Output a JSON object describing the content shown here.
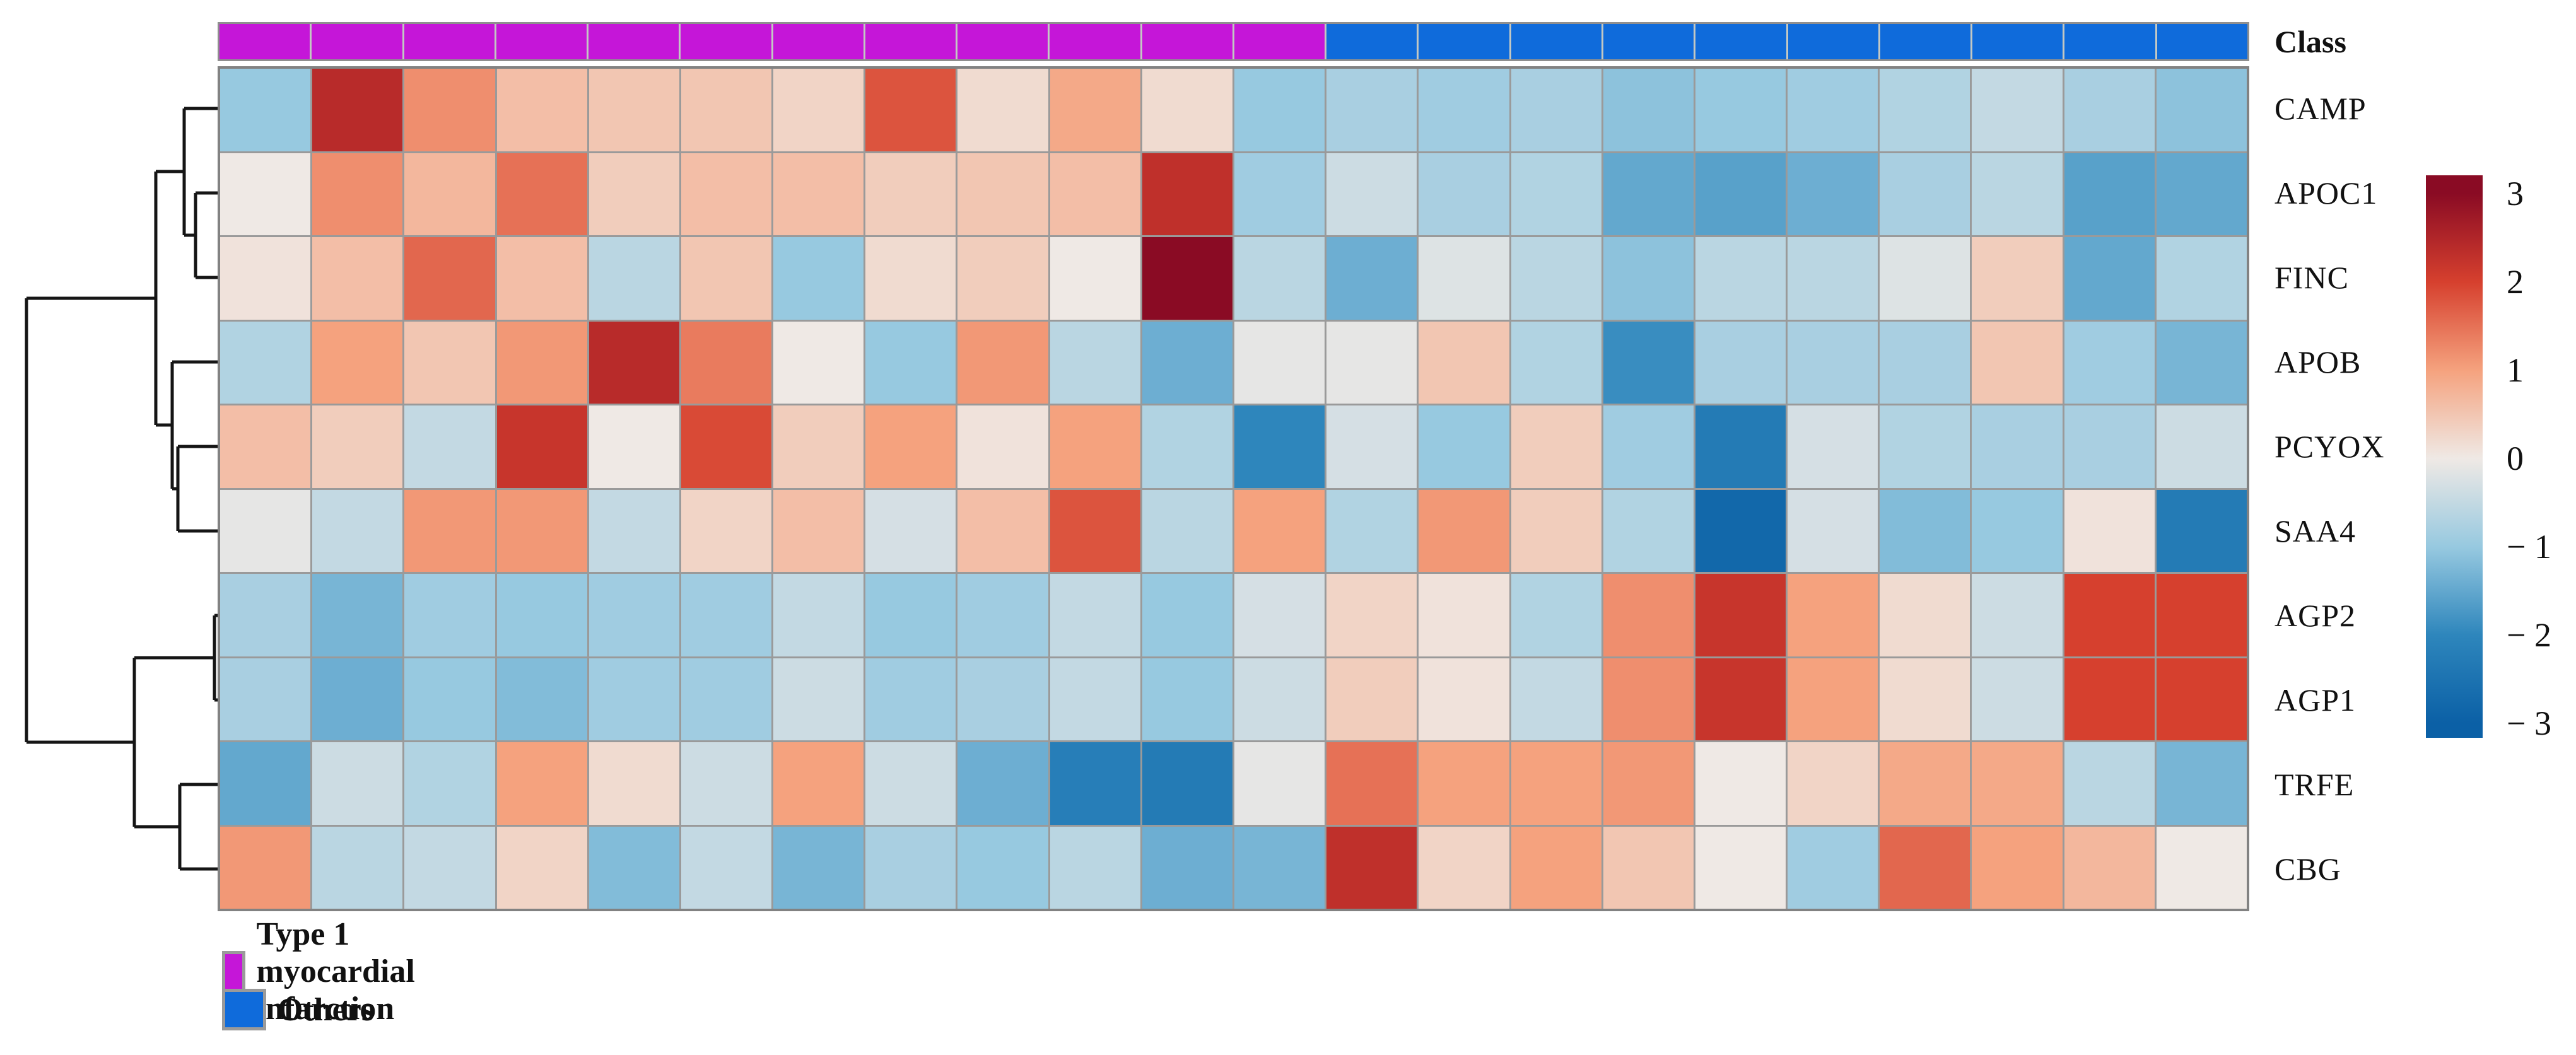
{
  "annotation_bar": {
    "label": "Class",
    "column_classes": [
      "mi",
      "mi",
      "mi",
      "mi",
      "mi",
      "mi",
      "mi",
      "mi",
      "mi",
      "mi",
      "mi",
      "mi",
      "other",
      "other",
      "other",
      "other",
      "other",
      "other",
      "other",
      "other",
      "other",
      "other"
    ],
    "class_colors": {
      "mi": "#c516d8",
      "other": "#0f6bdb"
    }
  },
  "legend": {
    "items": [
      {
        "label": "Type 1 myocardial infarction",
        "color": "#c516d8"
      },
      {
        "label": "Others",
        "color": "#0f6bdb"
      }
    ]
  },
  "chart_data": {
    "type": "heatmap",
    "title": "",
    "rows": [
      "CAMP",
      "APOC1",
      "FINC",
      "APOB",
      "PCYOX",
      "SAA4",
      "AGP2",
      "AGP1",
      "TRFE",
      "CBG"
    ],
    "n_columns": 22,
    "column_group_counts": {
      "Type 1 myocardial infarction": 12,
      "Others": 10
    },
    "values": [
      [
        -1.0,
        2.4,
        1.2,
        0.6,
        0.5,
        0.5,
        0.3,
        1.8,
        0.2,
        0.9,
        0.2,
        -1.0,
        -0.8,
        -0.9,
        -0.8,
        -1.1,
        -1.0,
        -0.9,
        -0.7,
        -0.5,
        -0.8,
        -1.1
      ],
      [
        0.0,
        1.2,
        0.7,
        1.5,
        0.4,
        0.6,
        0.6,
        0.4,
        0.5,
        0.6,
        2.3,
        -0.9,
        -0.4,
        -0.8,
        -0.7,
        -1.5,
        -1.6,
        -1.4,
        -0.8,
        -0.6,
        -1.6,
        -1.5
      ],
      [
        0.1,
        0.6,
        1.6,
        0.6,
        -0.6,
        0.5,
        -1.0,
        0.2,
        0.4,
        0.0,
        3.0,
        -0.6,
        -1.4,
        -0.2,
        -0.6,
        -1.1,
        -0.6,
        -0.6,
        -0.2,
        0.4,
        -1.5,
        -0.7
      ],
      [
        -0.7,
        1.0,
        0.5,
        1.1,
        2.4,
        1.4,
        0.0,
        -1.0,
        1.1,
        -0.6,
        -1.4,
        -0.1,
        -0.1,
        0.5,
        -0.7,
        -1.9,
        -0.8,
        -0.8,
        -0.8,
        0.5,
        -0.9,
        -1.3
      ],
      [
        0.6,
        0.4,
        -0.5,
        2.2,
        0.0,
        1.9,
        0.4,
        1.0,
        0.1,
        1.0,
        -0.7,
        -2.0,
        -0.3,
        -1.0,
        0.4,
        -0.9,
        -2.3,
        -0.3,
        -0.7,
        -0.8,
        -0.8,
        -0.4
      ],
      [
        -0.1,
        -0.5,
        1.1,
        1.1,
        -0.5,
        0.3,
        0.6,
        -0.3,
        0.6,
        1.8,
        -0.6,
        1.0,
        -0.7,
        1.1,
        0.4,
        -0.7,
        -2.8,
        -0.3,
        -1.2,
        -1.0,
        0.1,
        -2.3
      ],
      [
        -0.8,
        -1.3,
        -0.9,
        -1.0,
        -0.9,
        -0.9,
        -0.5,
        -1.0,
        -0.9,
        -0.5,
        -1.0,
        -0.3,
        0.3,
        0.1,
        -0.7,
        1.2,
        2.2,
        1.0,
        0.2,
        -0.4,
        2.0,
        2.0
      ],
      [
        -0.8,
        -1.4,
        -1.0,
        -1.2,
        -0.9,
        -0.9,
        -0.4,
        -0.9,
        -0.8,
        -0.5,
        -1.0,
        -0.4,
        0.4,
        0.1,
        -0.5,
        1.2,
        2.2,
        1.0,
        0.2,
        -0.4,
        2.0,
        2.0
      ],
      [
        -1.5,
        -0.4,
        -0.7,
        1.0,
        0.2,
        -0.4,
        1.0,
        -0.4,
        -1.4,
        -2.2,
        -2.3,
        -0.1,
        1.5,
        1.0,
        1.0,
        1.1,
        0.0,
        0.3,
        0.9,
        0.9,
        -0.6,
        -1.3
      ],
      [
        1.1,
        -0.6,
        -0.5,
        0.3,
        -1.2,
        -0.5,
        -1.3,
        -0.8,
        -1.0,
        -0.6,
        -1.4,
        -1.3,
        2.3,
        0.3,
        1.0,
        0.5,
        0.0,
        -0.9,
        1.6,
        1.0,
        0.7,
        0.0
      ]
    ],
    "colorbar": {
      "domain": [
        -3,
        3
      ],
      "ticks": [
        3,
        2,
        1,
        0,
        -1,
        -2,
        -3
      ],
      "tick_labels": [
        "3",
        "2",
        "1",
        "0",
        "− 1",
        "− 2",
        "− 3"
      ],
      "stop_values": [
        -3,
        -2,
        -1,
        0,
        1,
        2,
        3
      ],
      "stop_colors": [
        "#0b60a6",
        "#2e86bc",
        "#97c9e0",
        "#efe9e5",
        "#f5a27e",
        "#d6402e",
        "#8a0b24"
      ]
    },
    "dendrogram": {
      "line_color": "#151515",
      "segments": [
        [
          292,
          172,
          345,
          172
        ],
        [
          310,
          306,
          345,
          306
        ],
        [
          310,
          440,
          345,
          440
        ],
        [
          310,
          306,
          310,
          440
        ],
        [
          292,
          373,
          310,
          373
        ],
        [
          292,
          172,
          292,
          373
        ],
        [
          247,
          272,
          292,
          272
        ],
        [
          273,
          574,
          345,
          574
        ],
        [
          282,
          708,
          345,
          708
        ],
        [
          282,
          842,
          345,
          842
        ],
        [
          282,
          708,
          282,
          842
        ],
        [
          273,
          775,
          282,
          775
        ],
        [
          273,
          574,
          273,
          775
        ],
        [
          247,
          674,
          273,
          674
        ],
        [
          247,
          272,
          247,
          674
        ],
        [
          42,
          473,
          247,
          473
        ],
        [
          340,
          976,
          345,
          976
        ],
        [
          340,
          1110,
          345,
          1110
        ],
        [
          340,
          976,
          340,
          1110
        ],
        [
          213,
          1043,
          340,
          1043
        ],
        [
          285,
          1244,
          345,
          1244
        ],
        [
          285,
          1378,
          345,
          1378
        ],
        [
          285,
          1244,
          285,
          1378
        ],
        [
          213,
          1311,
          285,
          1311
        ],
        [
          213,
          1043,
          213,
          1311
        ],
        [
          42,
          1177,
          213,
          1177
        ],
        [
          42,
          473,
          42,
          1177
        ]
      ]
    },
    "legend_position": "bottom-left",
    "grid": true
  }
}
